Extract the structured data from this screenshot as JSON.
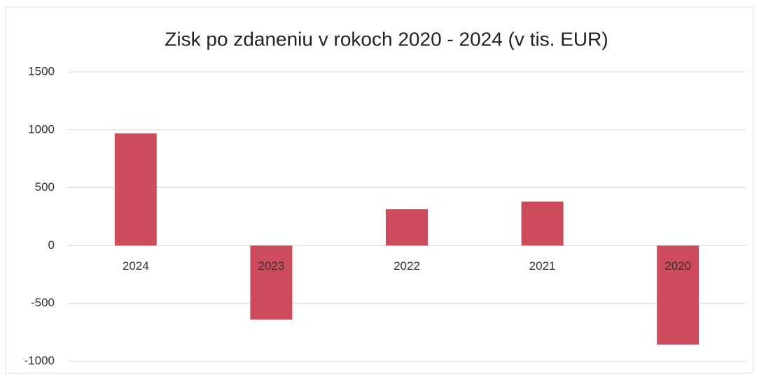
{
  "chart_data": {
    "type": "bar",
    "title": "Zisk po zdaneniu v rokoch 2020 - 2024 (v tis. EUR)",
    "categories": [
      "2024",
      "2023",
      "2022",
      "2021",
      "2020"
    ],
    "values": [
      970,
      -640,
      315,
      380,
      -855
    ],
    "color": "#cc4b5c",
    "ylim": [
      -1000,
      1500
    ],
    "yticks": [
      -1000,
      -500,
      0,
      500,
      1000,
      1500
    ],
    "grid": true
  }
}
